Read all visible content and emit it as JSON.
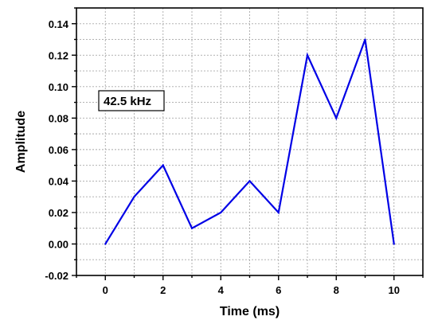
{
  "chart_data": {
    "type": "line",
    "title": "",
    "xlabel": "Time (ms)",
    "ylabel": "Amplitude",
    "xlim": [
      -1,
      11
    ],
    "ylim": [
      -0.02,
      0.15
    ],
    "x_ticks": [
      0,
      2,
      4,
      6,
      8,
      10
    ],
    "x_tick_labels": [
      "0",
      "2",
      "4",
      "6",
      "8",
      "10"
    ],
    "x_minor_step": 1,
    "y_ticks": [
      -0.02,
      0.0,
      0.02,
      0.04,
      0.06,
      0.08,
      0.1,
      0.12,
      0.14
    ],
    "y_tick_labels": [
      "-0.02",
      "0.00",
      "0.02",
      "0.04",
      "0.06",
      "0.08",
      "0.10",
      "0.12",
      "0.14"
    ],
    "y_minor_step": 0.01,
    "grid": true,
    "annotation": "42.5 kHz",
    "series": [
      {
        "color": "#0000e6",
        "x": [
          0,
          1,
          2,
          3,
          4,
          5,
          6,
          7,
          8,
          9,
          10
        ],
        "y": [
          0.0,
          0.03,
          0.05,
          0.01,
          0.02,
          0.04,
          0.02,
          0.12,
          0.08,
          0.13,
          0.0
        ]
      }
    ]
  }
}
